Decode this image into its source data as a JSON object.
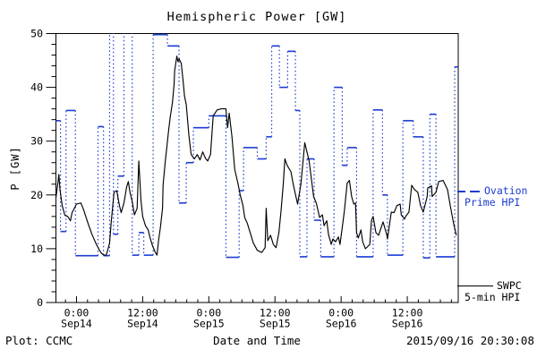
{
  "title": "Hemispheric Power [GW]",
  "colors": {
    "background": "#ffffff",
    "axis": "#000000",
    "ovation_blue": "#1c3cd2",
    "swpc_black": "#000000"
  },
  "footer": {
    "left": "Plot: CCMC",
    "right": "2015/09/16 20:30:08"
  },
  "legend": {
    "ovation": {
      "line1": "Ovation",
      "line2": "Prime HPI"
    },
    "swpc": {
      "line1": "SWPC",
      "line2": "5-min HPI"
    }
  },
  "chart_data": {
    "type": "line",
    "title": "Hemispheric Power [GW]",
    "xlabel": "Date and Time",
    "ylabel": "P [GW]",
    "ylim": [
      0,
      50
    ],
    "yticks": [
      0,
      10,
      20,
      30,
      40,
      50
    ],
    "y_minor_step": 2,
    "grid": false,
    "legend_position": "right-outside",
    "x_unit": "hours relative to Sep14 0:00",
    "x_hours_range": [
      -3.73,
      69.24
    ],
    "x_major_ticks_hours": [
      0,
      12,
      24,
      36,
      48,
      60
    ],
    "x_minor_step_hours": 2,
    "xtick_labels": [
      {
        "hour": 0,
        "time": "0:00",
        "date": "Sep14"
      },
      {
        "hour": 12,
        "time": "12:00",
        "date": "Sep14"
      },
      {
        "hour": 24,
        "time": "0:00",
        "date": "Sep15"
      },
      {
        "hour": 36,
        "time": "12:00",
        "date": "Sep15"
      },
      {
        "hour": 48,
        "time": "0:00",
        "date": "Sep16"
      },
      {
        "hour": 60,
        "time": "12:00",
        "date": "Sep16"
      }
    ],
    "series": [
      {
        "name": "SWPC 5-min HPI",
        "style": "solid-line",
        "color": "#000000",
        "points": [
          [
            -3.73,
            19.5
          ],
          [
            -3.4,
            22.0
          ],
          [
            -3.2,
            23.8
          ],
          [
            -3.0,
            21.0
          ],
          [
            -2.6,
            18.0
          ],
          [
            -2.1,
            16.2
          ],
          [
            -1.6,
            16.0
          ],
          [
            -1.1,
            15.2
          ],
          [
            -0.8,
            16.7
          ],
          [
            0.0,
            18.3
          ],
          [
            0.8,
            18.5
          ],
          [
            1.3,
            17.2
          ],
          [
            2.1,
            14.7
          ],
          [
            2.8,
            12.7
          ],
          [
            3.6,
            10.8
          ],
          [
            4.4,
            9.3
          ],
          [
            4.9,
            8.8
          ],
          [
            5.4,
            8.8
          ],
          [
            6.0,
            11.0
          ],
          [
            6.3,
            15.0
          ],
          [
            6.8,
            20.5
          ],
          [
            7.3,
            20.8
          ],
          [
            7.8,
            18.0
          ],
          [
            8.1,
            16.7
          ],
          [
            8.6,
            18.5
          ],
          [
            9.1,
            21.5
          ],
          [
            9.4,
            22.5
          ],
          [
            9.7,
            20.5
          ],
          [
            10.1,
            18.8
          ],
          [
            10.5,
            16.3
          ],
          [
            11.0,
            17.5
          ],
          [
            11.3,
            26.3
          ],
          [
            11.7,
            19.0
          ],
          [
            12.0,
            16.0
          ],
          [
            12.5,
            14.3
          ],
          [
            13.0,
            13.5
          ],
          [
            13.3,
            12.2
          ],
          [
            13.8,
            10.5
          ],
          [
            14.3,
            9.3
          ],
          [
            14.6,
            8.8
          ],
          [
            14.9,
            11.7
          ],
          [
            15.2,
            13.8
          ],
          [
            15.6,
            17.5
          ],
          [
            15.7,
            21.8
          ],
          [
            16.1,
            26.3
          ],
          [
            16.4,
            29.0
          ],
          [
            16.7,
            32.0
          ],
          [
            17.0,
            34.5
          ],
          [
            17.4,
            37.2
          ],
          [
            17.7,
            40.5
          ],
          [
            17.8,
            43.0
          ],
          [
            18.0,
            44.5
          ],
          [
            18.2,
            45.8
          ],
          [
            18.4,
            44.8
          ],
          [
            18.6,
            45.3
          ],
          [
            19.0,
            44.5
          ],
          [
            19.3,
            41.5
          ],
          [
            19.6,
            38.3
          ],
          [
            19.9,
            36.8
          ],
          [
            20.4,
            31.0
          ],
          [
            20.8,
            27.5
          ],
          [
            21.4,
            26.7
          ],
          [
            21.9,
            27.5
          ],
          [
            22.4,
            26.5
          ],
          [
            22.9,
            28.0
          ],
          [
            23.4,
            26.8
          ],
          [
            23.8,
            26.3
          ],
          [
            24.3,
            27.5
          ],
          [
            24.8,
            34.7
          ],
          [
            25.5,
            35.8
          ],
          [
            26.3,
            36.0
          ],
          [
            27.1,
            36.0
          ],
          [
            27.4,
            32.5
          ],
          [
            27.7,
            35.2
          ],
          [
            28.2,
            30.8
          ],
          [
            28.7,
            24.7
          ],
          [
            29.2,
            22.5
          ],
          [
            29.7,
            20.0
          ],
          [
            30.2,
            18.0
          ],
          [
            30.5,
            15.8
          ],
          [
            31.0,
            14.7
          ],
          [
            31.5,
            13.0
          ],
          [
            32.1,
            11.0
          ],
          [
            32.8,
            9.7
          ],
          [
            33.6,
            9.3
          ],
          [
            34.2,
            10.2
          ],
          [
            34.4,
            17.5
          ],
          [
            34.7,
            11.5
          ],
          [
            35.2,
            12.5
          ],
          [
            35.7,
            10.8
          ],
          [
            36.2,
            10.2
          ],
          [
            36.7,
            13.0
          ],
          [
            37.1,
            17.0
          ],
          [
            37.5,
            22.0
          ],
          [
            37.8,
            26.7
          ],
          [
            38.2,
            25.5
          ],
          [
            38.9,
            24.3
          ],
          [
            39.3,
            22.0
          ],
          [
            40.1,
            18.3
          ],
          [
            40.7,
            22.0
          ],
          [
            41.4,
            29.7
          ],
          [
            42.2,
            26.3
          ],
          [
            43.0,
            19.7
          ],
          [
            43.5,
            18.5
          ],
          [
            44.1,
            15.8
          ],
          [
            44.6,
            16.3
          ],
          [
            44.9,
            14.3
          ],
          [
            45.4,
            15.2
          ],
          [
            45.7,
            12.7
          ],
          [
            46.2,
            10.8
          ],
          [
            46.5,
            11.8
          ],
          [
            47.0,
            11.3
          ],
          [
            47.5,
            12.2
          ],
          [
            47.8,
            10.8
          ],
          [
            48.3,
            14.7
          ],
          [
            48.6,
            17.2
          ],
          [
            49.1,
            22.2
          ],
          [
            49.5,
            22.7
          ],
          [
            49.9,
            19.7
          ],
          [
            50.3,
            18.3
          ],
          [
            50.6,
            18.5
          ],
          [
            50.8,
            13.0
          ],
          [
            51.1,
            12.0
          ],
          [
            51.6,
            13.5
          ],
          [
            51.9,
            11.3
          ],
          [
            52.4,
            10.0
          ],
          [
            53.2,
            10.8
          ],
          [
            53.5,
            15.2
          ],
          [
            53.8,
            16.0
          ],
          [
            54.3,
            13.0
          ],
          [
            54.8,
            12.5
          ],
          [
            55.5,
            14.7
          ],
          [
            55.6,
            15.0
          ],
          [
            56.3,
            12.5
          ],
          [
            56.4,
            11.8
          ],
          [
            57.1,
            16.8
          ],
          [
            57.6,
            16.7
          ],
          [
            58.1,
            18.0
          ],
          [
            58.7,
            18.3
          ],
          [
            58.9,
            16.3
          ],
          [
            59.5,
            15.5
          ],
          [
            59.7,
            16.0
          ],
          [
            60.3,
            16.8
          ],
          [
            60.8,
            21.8
          ],
          [
            61.3,
            21.0
          ],
          [
            61.9,
            20.5
          ],
          [
            62.4,
            18.0
          ],
          [
            62.9,
            16.8
          ],
          [
            63.6,
            19.7
          ],
          [
            63.7,
            21.3
          ],
          [
            64.4,
            21.7
          ],
          [
            64.5,
            19.7
          ],
          [
            65.2,
            20.5
          ],
          [
            65.7,
            22.5
          ],
          [
            66.5,
            22.7
          ],
          [
            67.3,
            21.0
          ],
          [
            67.8,
            18.0
          ],
          [
            68.4,
            14.7
          ],
          [
            68.9,
            12.5
          ]
        ]
      },
      {
        "name": "Ovation Prime HPI",
        "style": "steps-dotted-connectors",
        "color": "#1c3cd2",
        "steps": [
          [
            -3.73,
            -2.9,
            33.8
          ],
          [
            -2.9,
            -1.9,
            13.2
          ],
          [
            -1.9,
            -0.2,
            35.7
          ],
          [
            -0.2,
            3.9,
            8.7
          ],
          [
            3.9,
            4.9,
            32.7
          ],
          [
            4.9,
            6.0,
            8.7
          ],
          [
            6.0,
            6.7,
            50.2
          ],
          [
            6.7,
            7.5,
            12.7
          ],
          [
            7.5,
            8.6,
            23.5
          ],
          [
            8.6,
            10.1,
            50.2
          ],
          [
            10.1,
            11.3,
            8.8
          ],
          [
            11.3,
            12.2,
            13.0
          ],
          [
            12.2,
            13.9,
            8.8
          ],
          [
            13.9,
            16.5,
            49.8
          ],
          [
            16.5,
            18.6,
            47.7
          ],
          [
            18.6,
            19.9,
            18.5
          ],
          [
            19.9,
            21.2,
            26.0
          ],
          [
            21.2,
            24.0,
            32.5
          ],
          [
            24.0,
            27.1,
            34.7
          ],
          [
            27.1,
            29.5,
            8.4
          ],
          [
            29.5,
            30.3,
            20.8
          ],
          [
            30.3,
            32.8,
            28.8
          ],
          [
            32.8,
            34.4,
            26.7
          ],
          [
            34.4,
            35.4,
            30.8
          ],
          [
            35.4,
            36.8,
            47.7
          ],
          [
            36.8,
            38.3,
            40.0
          ],
          [
            38.3,
            39.7,
            46.7
          ],
          [
            39.7,
            40.5,
            35.7
          ],
          [
            40.5,
            41.8,
            8.5
          ],
          [
            41.8,
            43.1,
            26.7
          ],
          [
            43.1,
            44.3,
            15.3
          ],
          [
            44.3,
            46.7,
            8.5
          ],
          [
            46.7,
            48.2,
            40.0
          ],
          [
            48.2,
            49.1,
            25.5
          ],
          [
            49.1,
            50.8,
            28.8
          ],
          [
            50.8,
            53.8,
            8.5
          ],
          [
            53.8,
            55.5,
            35.8
          ],
          [
            55.5,
            56.4,
            20.0
          ],
          [
            56.4,
            59.2,
            8.8
          ],
          [
            59.2,
            61.1,
            33.8
          ],
          [
            61.1,
            62.9,
            30.8
          ],
          [
            62.9,
            64.1,
            8.3
          ],
          [
            64.1,
            65.2,
            35.0
          ],
          [
            65.2,
            68.6,
            8.5
          ],
          [
            68.6,
            69.24,
            43.8
          ]
        ]
      }
    ]
  }
}
